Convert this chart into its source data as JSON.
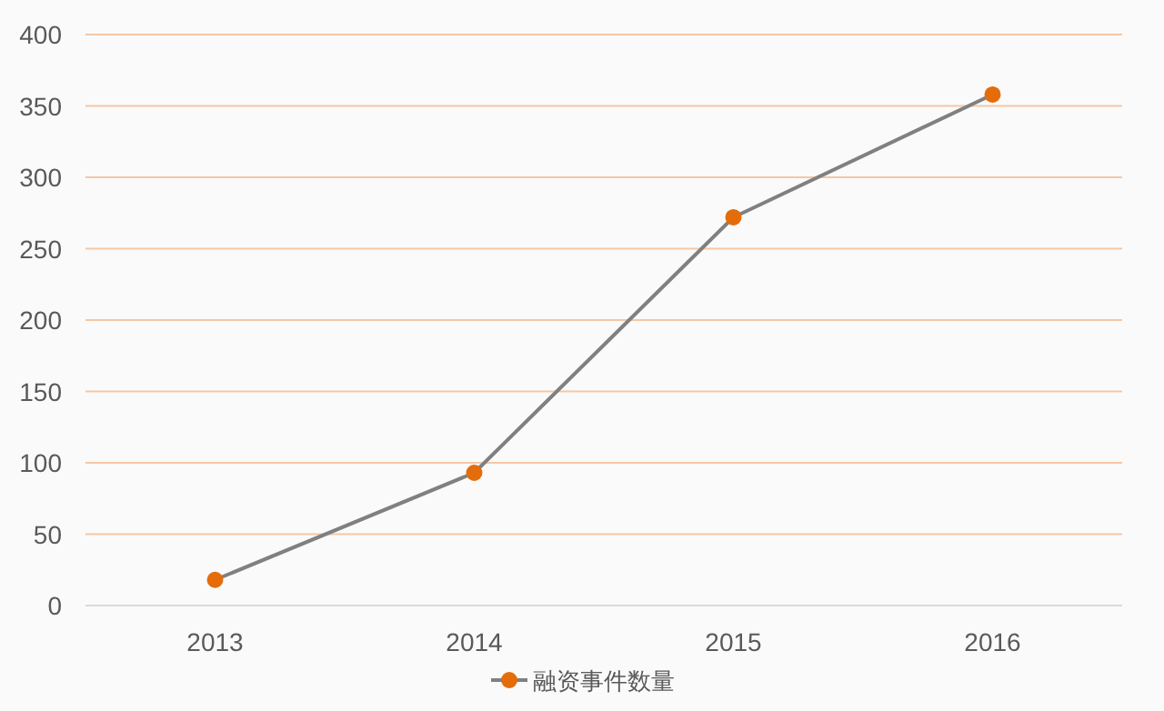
{
  "chart_data": {
    "type": "line",
    "categories": [
      "2013",
      "2014",
      "2015",
      "2016"
    ],
    "series": [
      {
        "name": "融资事件数量",
        "color": "#808080",
        "colors": [
          "#e46c0a",
          "#e46c0a",
          "#e46c0a",
          "#e46c0a"
        ],
        "values": [
          18,
          93,
          272,
          358
        ]
      }
    ],
    "ylim": [
      0,
      400
    ],
    "yticks": [
      0,
      50,
      100,
      150,
      200,
      250,
      300,
      350,
      400
    ],
    "grid": "y",
    "legend": "bottom",
    "marker": "circle",
    "line_style": "solid"
  }
}
